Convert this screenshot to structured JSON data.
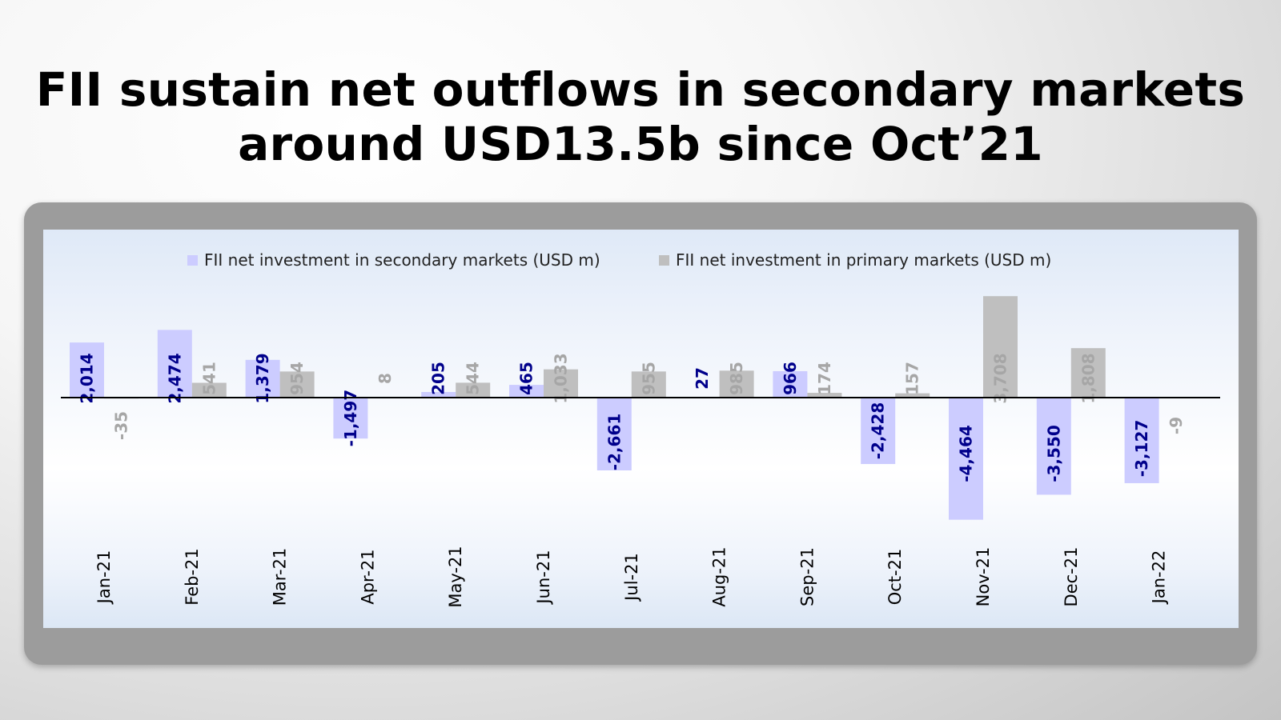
{
  "headline": {
    "line1": "FII sustain net outflows in secondary markets",
    "line2": "around USD13.5b since Oct’21"
  },
  "colors": {
    "secondary_bar": "#ccccff",
    "primary_bar": "#bfbfbf",
    "secondary_label": "#00008b",
    "primary_label": "#a6a6a6",
    "axis": "#000000"
  },
  "chart_data": {
    "type": "bar",
    "categories": [
      "Jan-21",
      "Feb-21",
      "Mar-21",
      "Apr-21",
      "May-21",
      "Jun-21",
      "Jul-21",
      "Aug-21",
      "Sep-21",
      "Oct-21",
      "Nov-21",
      "Dec-21",
      "Jan-22"
    ],
    "series": [
      {
        "name": "FII net investment in secondary markets (USD m)",
        "values": [
          2014,
          2474,
          1379,
          -1497,
          205,
          465,
          -2661,
          27,
          966,
          -2428,
          -4464,
          -3550,
          -3127
        ],
        "labels": [
          "2,014",
          "2,474",
          "1,379",
          "-1,497",
          "205",
          "465",
          "-2,661",
          "27",
          "966",
          "-2,428",
          "-4,464",
          "-3,550",
          "-3,127"
        ]
      },
      {
        "name": "FII net investment in primary markets (USD m)",
        "values": [
          -35,
          541,
          954,
          8,
          544,
          1033,
          955,
          985,
          174,
          157,
          3708,
          1808,
          -9
        ],
        "labels": [
          "-35",
          "541",
          "954",
          "8",
          "544",
          "1,033",
          "955",
          "985",
          "174",
          "157",
          "3,708",
          "1,808",
          "-9"
        ]
      }
    ],
    "legend": "top",
    "grid": false,
    "data_labels": "rotated"
  }
}
